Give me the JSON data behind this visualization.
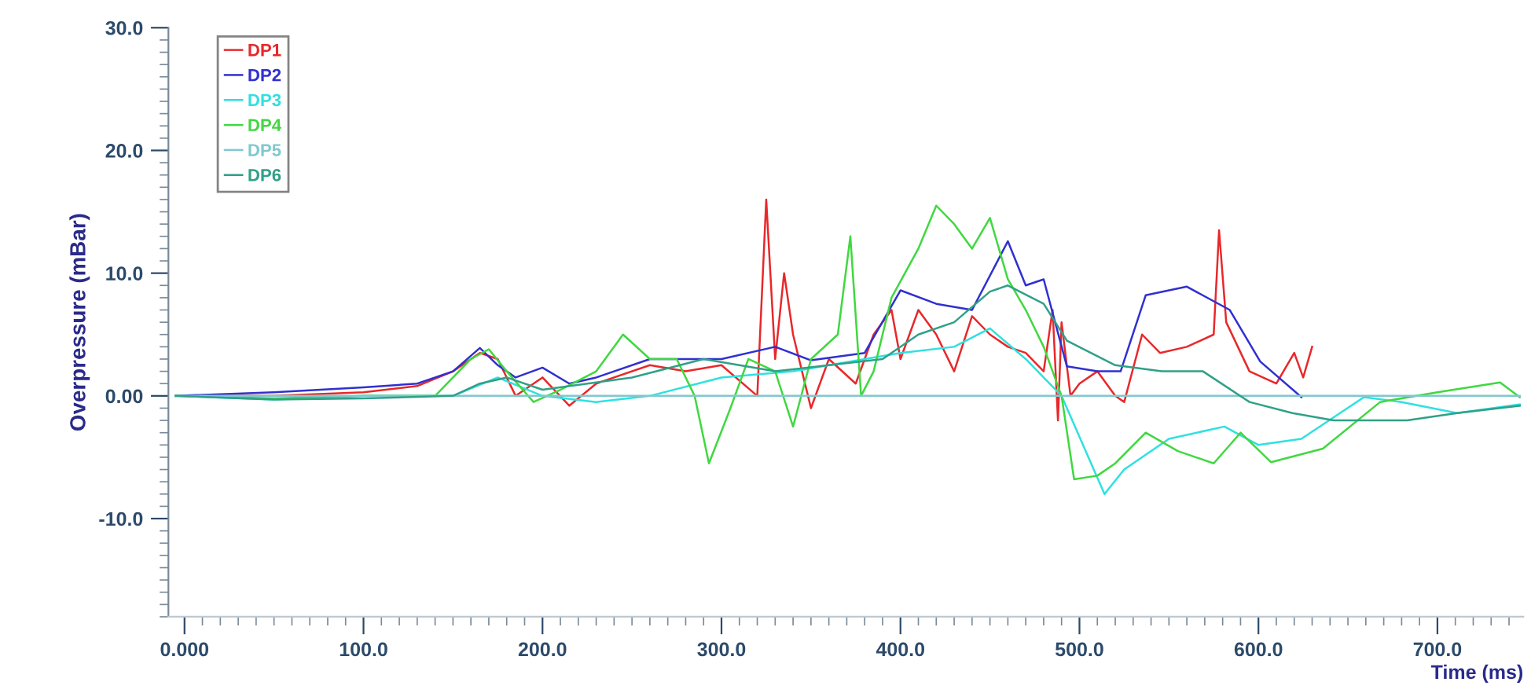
{
  "chart_data": {
    "type": "line",
    "xlabel": "Time (ms)",
    "ylabel": "Overpressure (mBar)",
    "xlim": [
      -9,
      748
    ],
    "ylim": [
      -18,
      30
    ],
    "xticks": [
      {
        "value": 0,
        "label": "0.000"
      },
      {
        "value": 100,
        "label": "100.0"
      },
      {
        "value": 200,
        "label": "200.0"
      },
      {
        "value": 300,
        "label": "300.0"
      },
      {
        "value": 400,
        "label": "400.0"
      },
      {
        "value": 500,
        "label": "500.0"
      },
      {
        "value": 600,
        "label": "600.0"
      },
      {
        "value": 700,
        "label": "700.0"
      }
    ],
    "yticks": [
      {
        "value": -10,
        "label": "-10.0"
      },
      {
        "value": 0,
        "label": "0.00"
      },
      {
        "value": 10,
        "label": "10.0"
      },
      {
        "value": 20,
        "label": "20.0"
      },
      {
        "value": 30,
        "label": "30.0"
      }
    ],
    "grid": false,
    "legend": "top left",
    "marker": "none",
    "line_style": "solid",
    "series": [
      {
        "name": "DP1",
        "color": "#e8282a",
        "x": [
          -5,
          50,
          100,
          130,
          150,
          165,
          175,
          185,
          200,
          215,
          230,
          260,
          280,
          300,
          320,
          325,
          330,
          335,
          340,
          350,
          360,
          375,
          385,
          395,
          400,
          410,
          420,
          430,
          440,
          450,
          460,
          470,
          480,
          485,
          488,
          490,
          495,
          500,
          510,
          520,
          525,
          535,
          545,
          560,
          575,
          578,
          582,
          595,
          610,
          620,
          625,
          630
        ],
        "values": [
          0,
          0,
          0.3,
          0.8,
          2.0,
          3.5,
          3.0,
          0,
          1.5,
          -0.8,
          1.0,
          2.5,
          2.0,
          2.5,
          0,
          16,
          3,
          10,
          5,
          -1,
          3,
          1,
          5,
          7,
          3,
          7,
          5,
          2,
          6.5,
          5,
          4,
          3.5,
          2,
          7,
          -2,
          6,
          0,
          1,
          2,
          0,
          -0.5,
          5,
          3.5,
          4,
          5,
          13.5,
          6,
          2,
          1,
          3.5,
          1.5,
          4
        ]
      },
      {
        "name": "DP2",
        "color": "#3030d0",
        "x": [
          -5,
          50,
          100,
          130,
          150,
          165,
          175,
          185,
          200,
          215,
          230,
          260,
          300,
          330,
          350,
          380,
          400,
          420,
          440,
          460,
          470,
          480,
          493,
          510,
          523,
          537,
          560,
          584,
          601,
          624
        ],
        "values": [
          0,
          0.3,
          0.7,
          1.0,
          2.0,
          3.9,
          2.5,
          1.5,
          2.3,
          1.0,
          1.5,
          3.0,
          3.0,
          4.0,
          2.9,
          3.5,
          8.6,
          7.5,
          7.0,
          12.6,
          9,
          9.5,
          2.4,
          2.0,
          2.0,
          8.2,
          8.9,
          7.0,
          2.8,
          -0.1
        ]
      },
      {
        "name": "DP3",
        "color": "#30e0e0",
        "x": [
          -5,
          50,
          100,
          150,
          175,
          200,
          230,
          260,
          300,
          340,
          380,
          400,
          430,
          450,
          470,
          490,
          505,
          514,
          525,
          550,
          581,
          600,
          624,
          659,
          680,
          711,
          746
        ],
        "values": [
          0,
          -0.3,
          0,
          0,
          1.5,
          0,
          -0.5,
          0,
          1.5,
          2,
          3,
          3.5,
          4,
          5.5,
          3,
          0,
          -5,
          -8,
          -6,
          -3.5,
          -2.5,
          -4,
          -3.5,
          -0.1,
          -0.5,
          -1.4,
          -0.7
        ]
      },
      {
        "name": "DP4",
        "color": "#40d840",
        "x": [
          -5,
          50,
          100,
          140,
          160,
          170,
          180,
          195,
          210,
          230,
          245,
          260,
          275,
          285,
          293,
          305,
          315,
          330,
          340,
          350,
          365,
          372,
          378,
          385,
          395,
          410,
          420,
          430,
          440,
          450,
          460,
          470,
          480,
          490,
          497,
          510,
          520,
          537,
          555,
          575,
          590,
          607,
          636,
          668,
          700,
          735,
          746
        ],
        "values": [
          0,
          -0.2,
          0,
          0,
          3,
          3.8,
          2,
          -0.5,
          0.5,
          2,
          5,
          3,
          3,
          0,
          -5.5,
          -1,
          3,
          2,
          -2.5,
          3,
          5,
          13,
          0,
          2,
          8,
          12,
          15.5,
          14,
          12,
          14.5,
          9.5,
          7,
          4,
          0,
          -6.8,
          -6.5,
          -5.5,
          -3,
          -4.5,
          -5.5,
          -3,
          -5.4,
          -4.3,
          -0.5,
          0.3,
          1.1,
          -0.1
        ]
      },
      {
        "name": "DP5",
        "color": "#80c8d0",
        "x": [
          -5,
          746
        ],
        "values": [
          0,
          0
        ]
      },
      {
        "name": "DP6",
        "color": "#30a088",
        "x": [
          -5,
          50,
          100,
          150,
          165,
          180,
          200,
          250,
          290,
          330,
          360,
          390,
          410,
          430,
          450,
          460,
          480,
          493,
          520,
          546,
          569,
          595,
          619,
          642,
          683,
          711,
          746
        ],
        "values": [
          0,
          -0.3,
          -0.2,
          0,
          1,
          1.5,
          0.5,
          1.5,
          3,
          2,
          2.5,
          3,
          5,
          6,
          8.5,
          9,
          7.5,
          4.5,
          2.5,
          2,
          2,
          -0.5,
          -1.4,
          -2,
          -2,
          -1.4,
          -0.8
        ]
      }
    ]
  }
}
